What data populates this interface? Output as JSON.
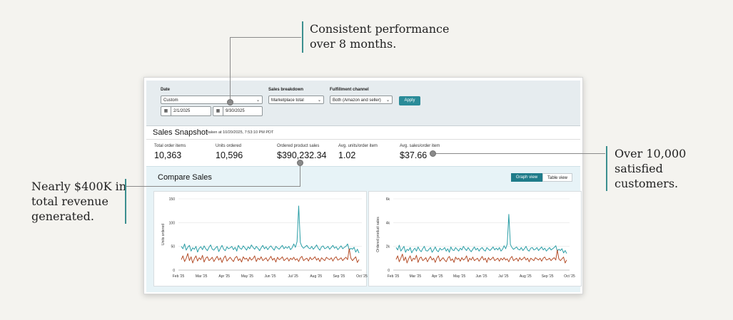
{
  "callouts": {
    "top": [
      "Consistent performance",
      "over 8 months."
    ],
    "left": [
      "Nearly $400K in",
      "total revenue",
      "generated."
    ],
    "right": [
      "Over 10,000",
      "satisfied",
      "customers."
    ]
  },
  "filters": {
    "date_label": "Date",
    "date_value": "Custom",
    "start_date": "2/1/2025",
    "end_date": "9/30/2025",
    "breakdown_label": "Sales breakdown",
    "breakdown_value": "Marketplace total",
    "fulfillment_label": "Fulfillment channel",
    "fulfillment_value": "Both (Amazon and seller)",
    "apply_label": "Apply"
  },
  "snapshot": {
    "title": "Sales Snapshot",
    "taken_at": "taken at 10/20/2025, 7:53:10 PM PDT",
    "metrics": [
      {
        "label": "Total order items",
        "value": "10,363"
      },
      {
        "label": "Units ordered",
        "value": "10,596"
      },
      {
        "label": "Ordered product sales",
        "value": "$390,232.34"
      },
      {
        "label": "Avg. units/order item",
        "value": "1.02"
      },
      {
        "label": "Avg. sales/order item",
        "value": "$37.66"
      }
    ]
  },
  "compare": {
    "title": "Compare Sales",
    "graph_view_label": "Graph view",
    "table_view_label": "Table view"
  },
  "colors": {
    "teal": "#2b9ea6",
    "rust": "#b5502c",
    "accent": "#2a8b98"
  },
  "chart_data": [
    {
      "type": "line",
      "ylabel": "Units ordered",
      "ylim": [
        0,
        150
      ],
      "yticks": [
        "0",
        "50",
        "100",
        "150"
      ],
      "xticks": [
        "Feb '25",
        "Mar '25",
        "Apr '25",
        "May '25",
        "Jun '25",
        "Jul '25",
        "Aug '25",
        "Sep '25",
        "Oct '25"
      ],
      "series": [
        {
          "values": [
            50,
            45,
            55,
            42,
            48,
            52,
            40,
            47,
            44,
            50,
            38,
            46,
            49,
            43,
            51,
            45,
            41,
            48,
            53,
            44,
            42,
            47,
            50,
            39,
            46,
            52,
            44,
            41,
            49,
            45,
            47,
            50,
            43,
            48,
            40,
            52,
            46,
            44,
            51,
            47,
            42,
            49,
            45,
            53,
            48,
            44,
            50,
            46,
            41,
            47,
            52,
            45,
            49,
            43,
            48,
            51,
            46,
            42,
            50,
            47,
            44,
            48,
            52,
            45,
            49,
            46,
            50,
            43,
            47,
            55,
            48,
            60,
            135,
            58,
            50,
            46,
            49,
            52,
            47,
            45,
            50,
            44,
            48,
            53,
            46,
            42,
            49,
            51,
            45,
            47,
            50,
            44,
            48,
            52,
            46,
            49,
            43,
            47,
            51,
            45,
            48,
            50,
            55,
            42,
            46,
            44,
            48,
            38,
            44,
            36
          ]
        },
        {
          "values": [
            22,
            30,
            18,
            25,
            35,
            20,
            28,
            15,
            24,
            30,
            19,
            26,
            22,
            31,
            17,
            25,
            28,
            20,
            23,
            27,
            18,
            24,
            29,
            21,
            26,
            16,
            25,
            30,
            19,
            23,
            27,
            22,
            18,
            26,
            29,
            20,
            24,
            17,
            28,
            23,
            25,
            19,
            27,
            21,
            24,
            30,
            18,
            25,
            22,
            28,
            20,
            23,
            26,
            19,
            24,
            29,
            21,
            25,
            17,
            27,
            22,
            24,
            28,
            20,
            23,
            26,
            19,
            25,
            22,
            27,
            21,
            24,
            18,
            26,
            29,
            20,
            23,
            25,
            19,
            27,
            22,
            24,
            28,
            21,
            25,
            18,
            26,
            23,
            20,
            27,
            24,
            22,
            26,
            19,
            25,
            28,
            21,
            23,
            26,
            20,
            24,
            27,
            22,
            45,
            25,
            20,
            24,
            28,
            16,
            22
          ]
        }
      ]
    },
    {
      "type": "line",
      "ylabel": "Ordered product sales",
      "ylim": [
        0,
        6000
      ],
      "yticks": [
        "0",
        "2k",
        "4k",
        "6k"
      ],
      "xticks": [
        "Feb '25",
        "Mar '25",
        "Apr '25",
        "May '25",
        "Jun '25",
        "Jul '25",
        "Aug '25",
        "Sep '25",
        "Oct '25"
      ],
      "series": [
        {
          "values": [
            1900,
            1700,
            2100,
            1600,
            1800,
            2000,
            1500,
            1750,
            1650,
            1900,
            1450,
            1700,
            1850,
            1600,
            1950,
            1700,
            1550,
            1800,
            2000,
            1650,
            1600,
            1750,
            1900,
            1500,
            1700,
            1950,
            1650,
            1550,
            1850,
            1700,
            1750,
            1900,
            1600,
            1800,
            1500,
            1950,
            1700,
            1650,
            1900,
            1750,
            1600,
            1850,
            1700,
            2000,
            1800,
            1650,
            1900,
            1700,
            1550,
            1750,
            1950,
            1700,
            1850,
            1600,
            1800,
            1900,
            1700,
            1600,
            1900,
            1750,
            1650,
            1800,
            1950,
            1700,
            1850,
            1700,
            1900,
            1600,
            1750,
            2050,
            1800,
            2200,
            4700,
            2150,
            1900,
            1750,
            1850,
            1950,
            1750,
            1700,
            1900,
            1650,
            1800,
            2000,
            1700,
            1600,
            1850,
            1900,
            1700,
            1750,
            1900,
            1650,
            1800,
            1950,
            1700,
            1850,
            1600,
            1750,
            1900,
            1700,
            1800,
            1900,
            2050,
            1600,
            1750,
            1650,
            1800,
            1450,
            1650,
            1400
          ]
        },
        {
          "values": [
            900,
            1200,
            700,
            1000,
            1350,
            800,
            1100,
            600,
            950,
            1200,
            750,
            1000,
            900,
            1250,
            650,
            1000,
            1100,
            800,
            900,
            1050,
            700,
            950,
            1150,
            850,
            1000,
            650,
            1000,
            1200,
            750,
            900,
            1050,
            850,
            700,
            1000,
            1150,
            800,
            950,
            650,
            1100,
            900,
            1000,
            750,
            1050,
            850,
            950,
            1200,
            700,
            1000,
            850,
            1100,
            800,
            900,
            1000,
            750,
            950,
            1150,
            850,
            1000,
            650,
            1050,
            850,
            950,
            1100,
            800,
            900,
            1000,
            750,
            1000,
            850,
            1050,
            850,
            950,
            700,
            1000,
            1150,
            800,
            900,
            1000,
            750,
            1050,
            850,
            950,
            1100,
            850,
            1000,
            700,
            1000,
            900,
            800,
            1050,
            950,
            850,
            1000,
            750,
            1000,
            1100,
            850,
            900,
            1000,
            800,
            950,
            1050,
            850,
            1700,
            950,
            800,
            950,
            1100,
            600,
            850
          ]
        }
      ]
    }
  ]
}
